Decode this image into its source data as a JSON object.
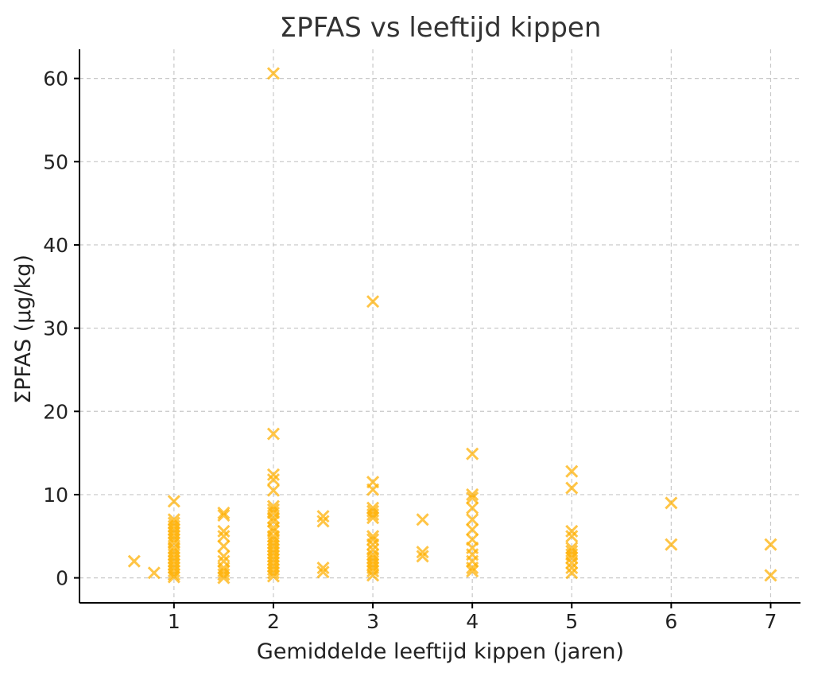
{
  "chart_data": {
    "type": "scatter",
    "title": "ΣPFAS vs leeftijd kippen",
    "xlabel": "Gemiddelde leeftijd kippen (jaren)",
    "ylabel": "ΣPFAS (µg/kg)",
    "xlim": [
      0.05,
      7.3
    ],
    "ylim": [
      -3,
      63.5
    ],
    "xticks": [
      1,
      2,
      3,
      4,
      5,
      6,
      7
    ],
    "yticks": [
      0,
      10,
      20,
      30,
      40,
      50,
      60
    ],
    "grid": true,
    "marker": "x",
    "color": "#FFB000",
    "opacity": 0.72,
    "series": [
      {
        "points": [
          [
            0.6,
            2.0
          ],
          [
            0.8,
            0.6
          ],
          [
            1.0,
            9.2
          ],
          [
            1.0,
            7.0
          ],
          [
            1.0,
            6.6
          ],
          [
            1.0,
            6.2
          ],
          [
            1.0,
            5.8
          ],
          [
            1.0,
            5.4
          ],
          [
            1.0,
            5.0
          ],
          [
            1.0,
            4.6
          ],
          [
            1.0,
            4.2
          ],
          [
            1.0,
            3.6
          ],
          [
            1.0,
            3.2
          ],
          [
            1.0,
            2.8
          ],
          [
            1.0,
            2.4
          ],
          [
            1.0,
            2.0
          ],
          [
            1.0,
            1.6
          ],
          [
            1.0,
            1.2
          ],
          [
            1.0,
            0.8
          ],
          [
            1.0,
            0.4
          ],
          [
            1.0,
            0.1
          ],
          [
            1.5,
            7.8
          ],
          [
            1.5,
            7.5
          ],
          [
            1.5,
            5.6
          ],
          [
            1.5,
            5.0
          ],
          [
            1.5,
            3.8
          ],
          [
            1.5,
            2.6
          ],
          [
            1.5,
            2.0
          ],
          [
            1.5,
            1.2
          ],
          [
            1.5,
            0.8
          ],
          [
            1.5,
            0.4
          ],
          [
            1.5,
            0.0
          ],
          [
            2.0,
            60.6
          ],
          [
            2.0,
            17.3
          ],
          [
            2.0,
            12.4
          ],
          [
            2.0,
            11.8
          ],
          [
            2.0,
            10.5
          ],
          [
            2.0,
            8.6
          ],
          [
            2.0,
            8.2
          ],
          [
            2.0,
            7.8
          ],
          [
            2.0,
            7.2
          ],
          [
            2.0,
            6.8
          ],
          [
            2.0,
            6.0
          ],
          [
            2.0,
            5.6
          ],
          [
            2.0,
            5.0
          ],
          [
            2.0,
            4.6
          ],
          [
            2.0,
            4.2
          ],
          [
            2.0,
            3.8
          ],
          [
            2.0,
            3.4
          ],
          [
            2.0,
            3.0
          ],
          [
            2.0,
            2.6
          ],
          [
            2.0,
            2.2
          ],
          [
            2.0,
            1.8
          ],
          [
            2.0,
            1.4
          ],
          [
            2.0,
            1.0
          ],
          [
            2.0,
            0.6
          ],
          [
            2.0,
            0.2
          ],
          [
            2.5,
            7.4
          ],
          [
            2.5,
            6.8
          ],
          [
            2.5,
            1.2
          ],
          [
            2.5,
            0.7
          ],
          [
            3.0,
            33.2
          ],
          [
            3.0,
            11.5
          ],
          [
            3.0,
            10.6
          ],
          [
            3.0,
            8.4
          ],
          [
            3.0,
            8.0
          ],
          [
            3.0,
            7.6
          ],
          [
            3.0,
            7.2
          ],
          [
            3.0,
            5.0
          ],
          [
            3.0,
            4.6
          ],
          [
            3.0,
            4.0
          ],
          [
            3.0,
            3.4
          ],
          [
            3.0,
            2.8
          ],
          [
            3.0,
            2.4
          ],
          [
            3.0,
            2.0
          ],
          [
            3.0,
            1.6
          ],
          [
            3.0,
            1.2
          ],
          [
            3.0,
            0.8
          ],
          [
            3.0,
            0.3
          ],
          [
            3.5,
            7.0
          ],
          [
            3.5,
            3.1
          ],
          [
            3.5,
            2.6
          ],
          [
            4.0,
            14.9
          ],
          [
            4.0,
            10.0
          ],
          [
            4.0,
            9.6
          ],
          [
            4.0,
            8.4
          ],
          [
            4.0,
            7.0
          ],
          [
            4.0,
            5.8
          ],
          [
            4.0,
            4.6
          ],
          [
            4.0,
            3.6
          ],
          [
            4.0,
            2.8
          ],
          [
            4.0,
            2.0
          ],
          [
            4.0,
            1.2
          ],
          [
            4.0,
            0.8
          ],
          [
            5.0,
            12.8
          ],
          [
            5.0,
            10.8
          ],
          [
            5.0,
            5.6
          ],
          [
            5.0,
            5.0
          ],
          [
            5.0,
            3.6
          ],
          [
            5.0,
            3.2
          ],
          [
            5.0,
            2.8
          ],
          [
            5.0,
            2.4
          ],
          [
            5.0,
            1.8
          ],
          [
            5.0,
            1.2
          ],
          [
            5.0,
            0.6
          ],
          [
            6.0,
            9.0
          ],
          [
            6.0,
            4.0
          ],
          [
            7.0,
            4.0
          ],
          [
            7.0,
            0.3
          ]
        ]
      }
    ]
  }
}
